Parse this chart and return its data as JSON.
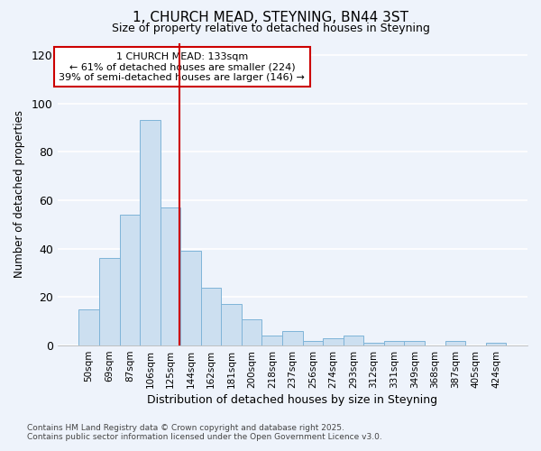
{
  "title_line1": "1, CHURCH MEAD, STEYNING, BN44 3ST",
  "title_line2": "Size of property relative to detached houses in Steyning",
  "xlabel": "Distribution of detached houses by size in Steyning",
  "ylabel": "Number of detached properties",
  "categories": [
    "50sqm",
    "69sqm",
    "87sqm",
    "106sqm",
    "125sqm",
    "144sqm",
    "162sqm",
    "181sqm",
    "200sqm",
    "218sqm",
    "237sqm",
    "256sqm",
    "274sqm",
    "293sqm",
    "312sqm",
    "331sqm",
    "349sqm",
    "368sqm",
    "387sqm",
    "405sqm",
    "424sqm"
  ],
  "values": [
    15,
    36,
    54,
    93,
    57,
    39,
    24,
    17,
    11,
    4,
    6,
    2,
    3,
    4,
    1,
    2,
    2,
    0,
    2,
    0,
    1
  ],
  "bar_color": "#ccdff0",
  "bar_edge_color": "#7fb4d8",
  "background_color": "#eef3fb",
  "grid_color": "#ffffff",
  "ylim": [
    0,
    125
  ],
  "yticks": [
    0,
    20,
    40,
    60,
    80,
    100,
    120
  ],
  "annotation_text_line1": "1 CHURCH MEAD: 133sqm",
  "annotation_text_line2": "← 61% of detached houses are smaller (224)",
  "annotation_text_line3": "39% of semi-detached houses are larger (146) →",
  "annotation_box_color": "#ffffff",
  "annotation_box_edge_color": "#cc0000",
  "vline_color": "#cc0000",
  "vline_x_index": 4.43,
  "footnote_line1": "Contains HM Land Registry data © Crown copyright and database right 2025.",
  "footnote_line2": "Contains public sector information licensed under the Open Government Licence v3.0."
}
